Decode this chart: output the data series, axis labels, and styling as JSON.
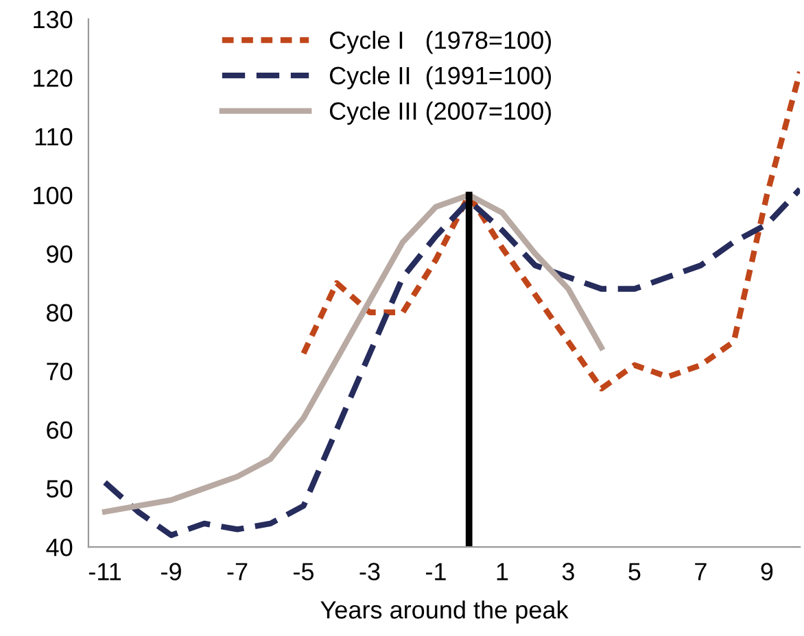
{
  "chart_data": {
    "type": "line",
    "xlabel": "Years around the peak",
    "x": [
      -11,
      -10,
      -9,
      -8,
      -7,
      -6,
      -5,
      -4,
      -3,
      -2,
      -1,
      0,
      1,
      2,
      3,
      4,
      5,
      6,
      7,
      8,
      9,
      10
    ],
    "series": [
      {
        "name": "Cycle I   (1978=100)",
        "color": "#c0461a",
        "line_style": "dotted",
        "values": [
          null,
          null,
          null,
          null,
          null,
          null,
          73,
          85,
          80,
          80,
          89,
          100,
          91,
          83,
          75,
          67,
          71,
          69,
          71,
          75,
          100,
          121
        ]
      },
      {
        "name": "Cycle II  (1991=100)",
        "color": "#262c5c",
        "line_style": "dashed",
        "values": [
          51,
          46,
          42,
          44,
          43,
          44,
          47,
          60,
          73,
          86,
          93,
          99,
          94,
          88,
          86,
          84,
          84,
          86,
          88,
          92,
          95,
          101
        ]
      },
      {
        "name": "Cycle III (2007=100)",
        "color": "#b8aaa3",
        "line_style": "solid",
        "values": [
          46,
          47,
          48,
          50,
          52,
          55,
          62,
          72,
          82,
          92,
          98,
          100,
          97,
          90,
          84,
          74,
          null,
          null,
          null,
          null,
          null,
          null
        ]
      }
    ],
    "xlim": [
      -11.5,
      10
    ],
    "xticks": [
      -11,
      -9,
      -7,
      -5,
      -3,
      -1,
      1,
      3,
      5,
      7,
      9
    ],
    "ylim": [
      40,
      130
    ],
    "yticks": [
      40,
      50,
      60,
      70,
      80,
      90,
      100,
      110,
      120,
      130
    ],
    "ref_lines": [
      {
        "axis": "x",
        "value": 0,
        "color": "#000000"
      }
    ],
    "grid": false,
    "legend": "top"
  }
}
